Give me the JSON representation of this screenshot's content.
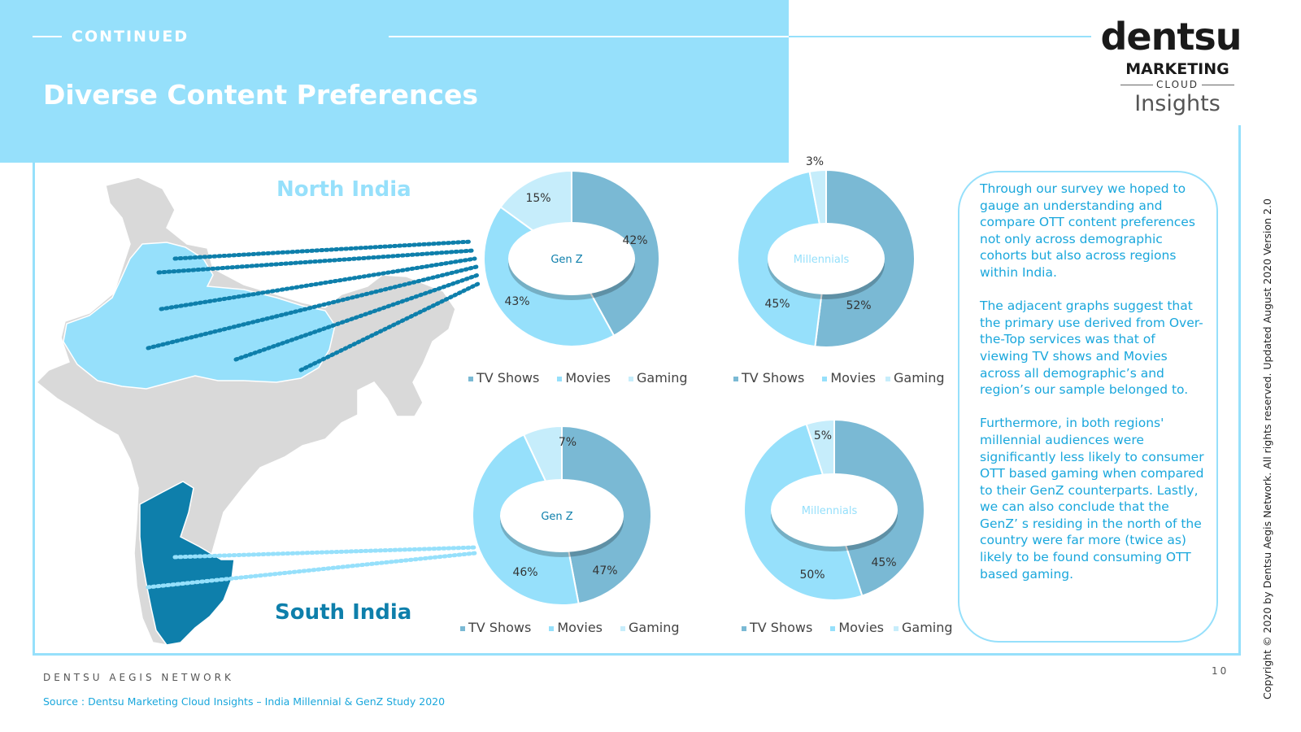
{
  "header": {
    "continued": "CONTINUED",
    "title": "Diverse Content Preferences"
  },
  "logo": {
    "dentsu": "dentsu",
    "marketing": "MARKETING",
    "cloud": "CLOUD",
    "insights": "Insights"
  },
  "regions": {
    "north": "North India",
    "south": "South India"
  },
  "colors": {
    "band": "#96e0fb",
    "tv_shows": "#7ab9d4",
    "movies": "#96e0fb",
    "gaming": "#c6edfb",
    "south_highlight": "#0e7fab",
    "text_accent": "#1aa7dc"
  },
  "chart_data": [
    {
      "type": "pie",
      "region": "North India",
      "center_label": "Gen Z",
      "categories": [
        "TV Shows",
        "Movies",
        "Gaming"
      ],
      "values": [
        42,
        43,
        15
      ],
      "labels": [
        "42%",
        "43%",
        "15%"
      ]
    },
    {
      "type": "pie",
      "region": "North India",
      "center_label": "Millennials",
      "categories": [
        "TV Shows",
        "Movies",
        "Gaming"
      ],
      "values": [
        52,
        45,
        3
      ],
      "labels": [
        "52%",
        "45%",
        "3%"
      ]
    },
    {
      "type": "pie",
      "region": "South India",
      "center_label": "Gen Z",
      "categories": [
        "TV Shows",
        "Movies",
        "Gaming"
      ],
      "values": [
        47,
        46,
        7
      ],
      "labels": [
        "47%",
        "46%",
        "7%"
      ]
    },
    {
      "type": "pie",
      "region": "South India",
      "center_label": "Millennials",
      "categories": [
        "TV Shows",
        "Movies",
        "Gaming"
      ],
      "values": [
        45,
        50,
        5
      ],
      "labels": [
        "45%",
        "50%",
        "5%"
      ]
    }
  ],
  "legend": [
    "TV Shows",
    "Movies",
    "Gaming"
  ],
  "commentary": [
    "Through our survey we hoped to gauge an understanding and compare OTT content preferences not only across demographic cohorts but also across regions within India.",
    "The adjacent graphs suggest that the primary use derived from Over-the-Top services was that of viewing TV shows and Movies across all demographic’s and region’s our sample belonged to.",
    "Furthermore, in both regions' millennial audiences were significantly less likely to consumer OTT based gaming when compared to their GenZ counterparts. Lastly, we can also conclude that the GenZ’ s residing in the north of the country were far more (twice as) likely to be found consuming OTT based gaming."
  ],
  "footer": {
    "network": "DENTSU AEGIS NETWORK",
    "page_number": "10",
    "source": "Source : Dentsu Marketing Cloud Insights – India Millennial & GenZ Study 2020",
    "copyright": "Copyright © 2020 by Dentsu Aegis Network. All rights reserved. Updated August 2020 Version 2.0"
  }
}
